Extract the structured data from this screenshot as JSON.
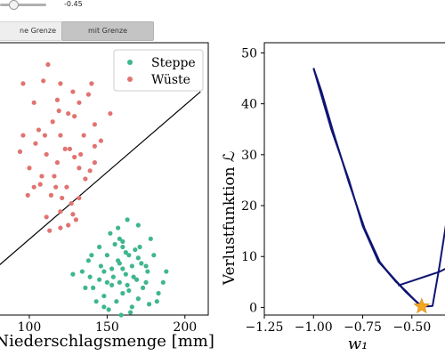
{
  "controls": {
    "slider_value": "-0.45",
    "slider_fraction": 0.28,
    "tabs": [
      {
        "label": "ohne Grenze",
        "visible_label": "ne Grenze",
        "selected": false
      },
      {
        "label": "mit Grenze",
        "selected": true
      }
    ]
  },
  "chart_data": [
    {
      "type": "scatter",
      "xlabel": "Niederschlagsmenge [mm]",
      "ylabel": "",
      "xlim": [
        80,
        215
      ],
      "ylim": [
        0,
        100
      ],
      "x_ticks": [
        100,
        150,
        200
      ],
      "x_tick_labels": [
        "100",
        "150",
        "200"
      ],
      "y_ticks": [],
      "grid": false,
      "legend": {
        "placement": "top-right"
      },
      "colors": {
        "Steppe": "#3fb68e",
        "Wüste": "#e17370",
        "boundary": "#000000"
      },
      "series": [
        {
          "name": "Steppe",
          "points": [
            [
              163,
              35
            ],
            [
              170,
              33
            ],
            [
              152,
              30
            ],
            [
              158,
              28
            ],
            [
              160,
              25
            ],
            [
              168,
              24
            ],
            [
              155,
              26
            ],
            [
              150,
              22
            ],
            [
              172,
              19
            ],
            [
              166,
              18
            ],
            [
              160,
              17
            ],
            [
              148,
              16
            ],
            [
              176,
              16
            ],
            [
              139,
              14
            ],
            [
              145,
              13
            ],
            [
              167,
              14
            ],
            [
              158,
              12
            ],
            [
              138,
              20
            ],
            [
              141,
              10
            ],
            [
              153,
              11
            ],
            [
              175,
              12
            ],
            [
              160,
              8
            ],
            [
              148,
              7
            ],
            [
              156,
              5
            ],
            [
              164,
              9
            ],
            [
              170,
              6
            ],
            [
              182,
              5
            ],
            [
              157,
              20
            ],
            [
              162,
              15
            ],
            [
              146,
              18
            ],
            [
              164,
              22
            ],
            [
              178,
              28
            ],
            [
              170,
              21
            ],
            [
              153,
              17
            ],
            [
              173,
              10
            ],
            [
              180,
              22
            ],
            [
              143,
              5
            ],
            [
              166,
              3
            ],
            [
              151,
              2
            ],
            [
              159,
              0
            ],
            [
              186,
              12
            ],
            [
              140,
              22
            ],
            [
              134,
              16
            ],
            [
              157,
              32
            ],
            [
              162,
              23
            ],
            [
              148,
              3
            ],
            [
              169,
              13
            ],
            [
              154,
              14
            ],
            [
              177,
              4
            ],
            [
              136,
              10
            ],
            [
              160,
              27
            ],
            [
              171,
              25
            ],
            [
              145,
              25
            ],
            [
              188,
              16
            ],
            [
              165,
              1
            ],
            [
              150,
              12
            ],
            [
              175,
              18
            ],
            [
              158,
              19
            ],
            [
              163,
              11
            ],
            [
              128,
              15
            ],
            [
              183,
              8
            ]
          ]
        },
        {
          "name": "Wüste",
          "points": [
            [
              112,
              92
            ],
            [
              96,
              85
            ],
            [
              109,
              86
            ],
            [
              120,
              85
            ],
            [
              128,
              82
            ],
            [
              138,
              81
            ],
            [
              132,
              78
            ],
            [
              140,
              85
            ],
            [
              118,
              79
            ],
            [
              103,
              78
            ],
            [
              125,
              74
            ],
            [
              115,
              71
            ],
            [
              129,
              73
            ],
            [
              142,
              70
            ],
            [
              106,
              68
            ],
            [
              135,
              66
            ],
            [
              120,
              66
            ],
            [
              96,
              66
            ],
            [
              104,
              63
            ],
            [
              123,
              61
            ],
            [
              111,
              59
            ],
            [
              129,
              58
            ],
            [
              142,
              56
            ],
            [
              118,
              56
            ],
            [
              132,
              54
            ],
            [
              100,
              54
            ],
            [
              108,
              51
            ],
            [
              116,
              51
            ],
            [
              136,
              50
            ],
            [
              124,
              47
            ],
            [
              103,
              47
            ],
            [
              114,
              44
            ],
            [
              132,
              43
            ],
            [
              127,
              41
            ],
            [
              120,
              38
            ],
            [
              111,
              36
            ],
            [
              130,
              35
            ],
            [
              120,
              32
            ],
            [
              94,
              60
            ],
            [
              99,
              44
            ],
            [
              126,
              61
            ],
            [
              133,
              59
            ],
            [
              117,
              47
            ],
            [
              139,
              53
            ],
            [
              121,
              43
            ],
            [
              128,
              37
            ],
            [
              125,
              33
            ],
            [
              113,
              31
            ],
            [
              107,
              48
            ],
            [
              142,
              62
            ],
            [
              146,
              64
            ],
            [
              152,
              74
            ],
            [
              110,
              66
            ],
            [
              119,
              75
            ]
          ]
        }
      ],
      "decision_boundary": {
        "x": [
          80,
          210
        ],
        "y": [
          18,
          82
        ]
      }
    },
    {
      "type": "line",
      "xlabel": "w₁",
      "ylabel": "Verlustfunktion ℒ",
      "xlim": [
        -1.25,
        -0.3
      ],
      "ylim": [
        -1.5,
        52
      ],
      "x_ticks": [
        -1.25,
        -1.0,
        -0.75,
        -0.5
      ],
      "x_tick_labels": [
        "−1.25",
        "−1.00",
        "−0.75",
        "−0.50"
      ],
      "y_ticks": [
        0,
        10,
        20,
        30,
        40,
        50
      ],
      "y_tick_labels": [
        "0",
        "10",
        "20",
        "30",
        "40",
        "50"
      ],
      "grid": false,
      "colors": {
        "line": "#0e1573",
        "marker": "#f5a623"
      },
      "line_width": 2,
      "series": [
        {
          "x": [
            -1.0,
            -0.97,
            -0.91,
            -0.82,
            -0.75,
            -0.67,
            -0.6,
            -0.53,
            -0.455
          ],
          "y": [
            47,
            43,
            35,
            25,
            16,
            9,
            6,
            3,
            0.3
          ]
        },
        {
          "x": [
            -1.0,
            -0.96,
            -0.9,
            -0.82,
            -0.74,
            -0.66,
            -0.59,
            -0.52,
            -0.455
          ],
          "y": [
            47,
            42.5,
            34.5,
            24.5,
            15.5,
            8.7,
            5.6,
            2.7,
            0.3
          ]
        },
        {
          "x": [
            -0.66,
            -0.62,
            -0.58,
            -0.53,
            -0.49,
            -0.455
          ],
          "y": [
            8.8,
            6.8,
            5.0,
            3.2,
            1.6,
            0.4
          ]
        },
        {
          "x": [
            -0.455,
            -0.42,
            -0.395,
            -0.36,
            -0.32
          ],
          "y": [
            0.3,
            0.2,
            0.3,
            8,
            18
          ]
        },
        {
          "x": [
            -0.57,
            -0.5,
            -0.43,
            -0.36,
            -0.33
          ],
          "y": [
            4.3,
            5.2,
            6.1,
            7.0,
            7.6
          ]
        }
      ],
      "marker": {
        "x": -0.45,
        "y": 0.2,
        "shape": "star"
      }
    }
  ]
}
